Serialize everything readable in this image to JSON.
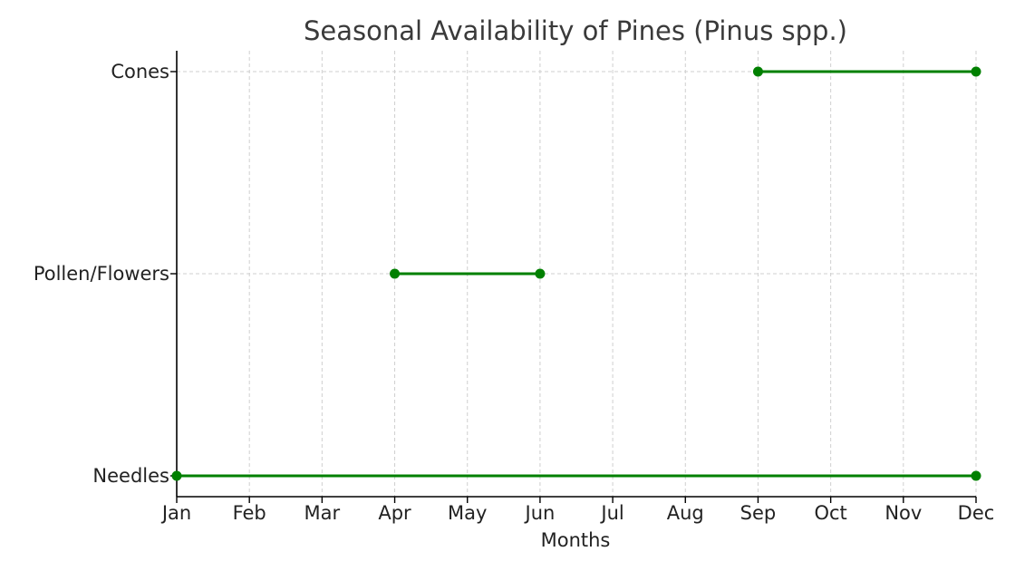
{
  "chart_data": {
    "type": "line",
    "title": "Seasonal Availability of Pines (Pinus spp.)",
    "xlabel": "Months",
    "ylabel": "",
    "x_categories": [
      "Jan",
      "Feb",
      "Mar",
      "Apr",
      "May",
      "Jun",
      "Jul",
      "Aug",
      "Sep",
      "Oct",
      "Nov",
      "Dec"
    ],
    "y_categories": [
      "Needles",
      "Pollen/Flowers",
      "Cones"
    ],
    "grid": true,
    "color": "#008000",
    "series": [
      {
        "category": "Needles",
        "start": "Jan",
        "end": "Dec"
      },
      {
        "category": "Pollen/Flowers",
        "start": "Apr",
        "end": "Jun"
      },
      {
        "category": "Cones",
        "start": "Sep",
        "end": "Dec"
      }
    ]
  }
}
